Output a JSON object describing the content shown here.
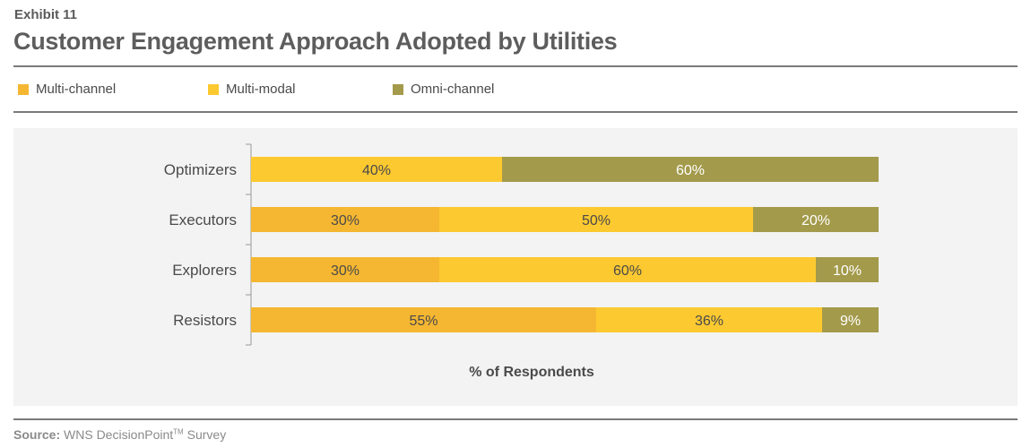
{
  "header": {
    "exhibit": "Exhibit 11",
    "title": "Customer Engagement Approach Adopted by Utilities"
  },
  "legend": [
    {
      "label": "Multi-channel",
      "color": "#f5b731"
    },
    {
      "label": "Multi-modal",
      "color": "#fcc930"
    },
    {
      "label": "Omni-channel",
      "color": "#a39a4b"
    }
  ],
  "chart_data": {
    "type": "bar",
    "orientation": "horizontal",
    "stacked": true,
    "categories": [
      "Optimizers",
      "Executors",
      "Explorers",
      "Resistors"
    ],
    "series": [
      {
        "name": "Multi-channel",
        "color": "#f5b731",
        "values": [
          0,
          30,
          30,
          55
        ],
        "labels": [
          "",
          "30%",
          "30%",
          "55%"
        ]
      },
      {
        "name": "Multi-modal",
        "color": "#fcc930",
        "values": [
          40,
          50,
          60,
          36
        ],
        "labels": [
          "40%",
          "50%",
          "60%",
          "36%"
        ]
      },
      {
        "name": "Omni-channel",
        "color": "#a39a4b",
        "values": [
          60,
          20,
          10,
          9
        ],
        "labels": [
          "60%",
          "20%",
          "10%",
          "9%"
        ]
      }
    ],
    "xlabel": "% of Respondents",
    "xlim": [
      0,
      100
    ],
    "legend_position": "top",
    "grid": false
  },
  "source": {
    "label": "Source:",
    "text": "WNS DecisionPoint",
    "tm": "TM",
    "suffix": " Survey"
  }
}
